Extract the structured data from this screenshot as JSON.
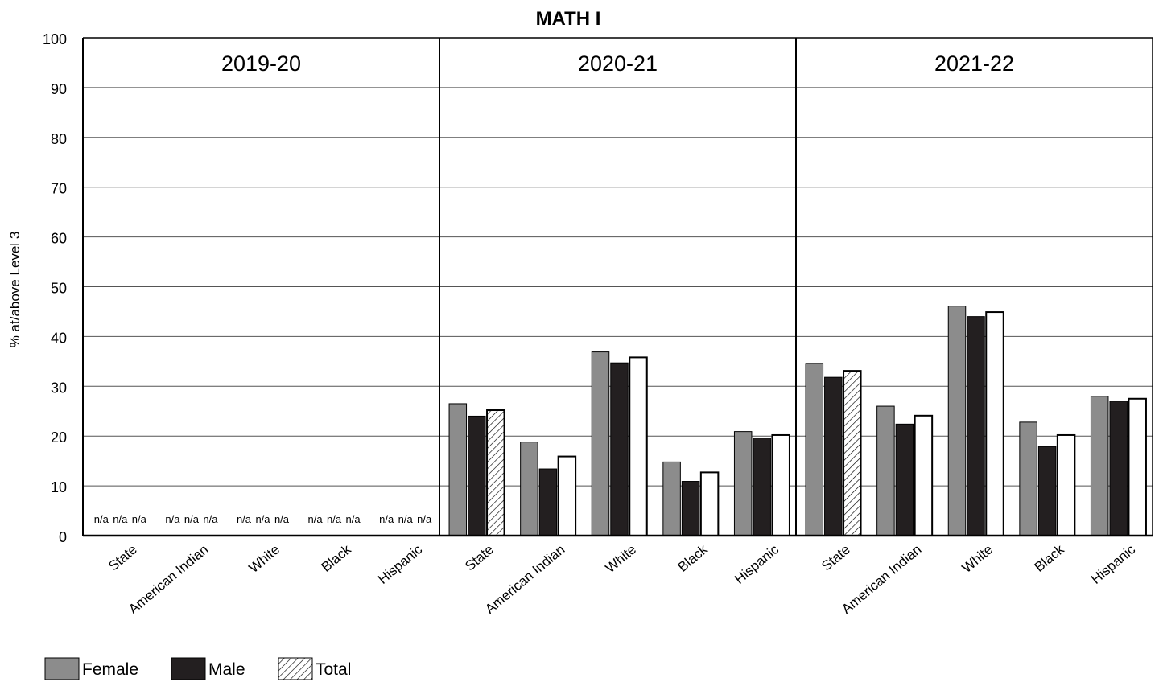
{
  "chart_data": {
    "type": "bar",
    "title": "MATH I",
    "ylabel": "% at/above Level 3",
    "xlabel": "",
    "ylim": [
      0,
      100
    ],
    "yticks": [
      0,
      10,
      20,
      30,
      40,
      50,
      60,
      70,
      80,
      90,
      100
    ],
    "grid": true,
    "legend_position": "bottom-left",
    "categories": [
      "State",
      "American Indian",
      "White",
      "Black",
      "Hispanic"
    ],
    "series": [
      {
        "name": "Female",
        "pattern": "solid",
        "color": "#8c8c8c"
      },
      {
        "name": "Male",
        "pattern": "solid",
        "color": "#231f20"
      },
      {
        "name": "Total",
        "pattern": "hatched (State) / white (groups)",
        "color": "#ffffff"
      }
    ],
    "panels": [
      {
        "year": "2019-20",
        "na_label": "n/a",
        "values": {
          "Female": [
            null,
            null,
            null,
            null,
            null
          ],
          "Male": [
            null,
            null,
            null,
            null,
            null
          ],
          "Total": [
            null,
            null,
            null,
            null,
            null
          ]
        }
      },
      {
        "year": "2020-21",
        "values": {
          "Female": [
            26.5,
            18.8,
            36.9,
            14.8,
            20.9
          ],
          "Male": [
            24.0,
            13.4,
            34.7,
            10.9,
            19.6
          ],
          "Total": [
            25.2,
            15.9,
            35.8,
            12.7,
            20.2
          ]
        }
      },
      {
        "year": "2021-22",
        "values": {
          "Female": [
            34.6,
            26.0,
            46.1,
            22.8,
            28.0
          ],
          "Male": [
            31.8,
            22.4,
            44.0,
            17.9,
            27.0
          ],
          "Total": [
            33.1,
            24.1,
            44.9,
            20.2,
            27.5
          ]
        }
      }
    ]
  }
}
